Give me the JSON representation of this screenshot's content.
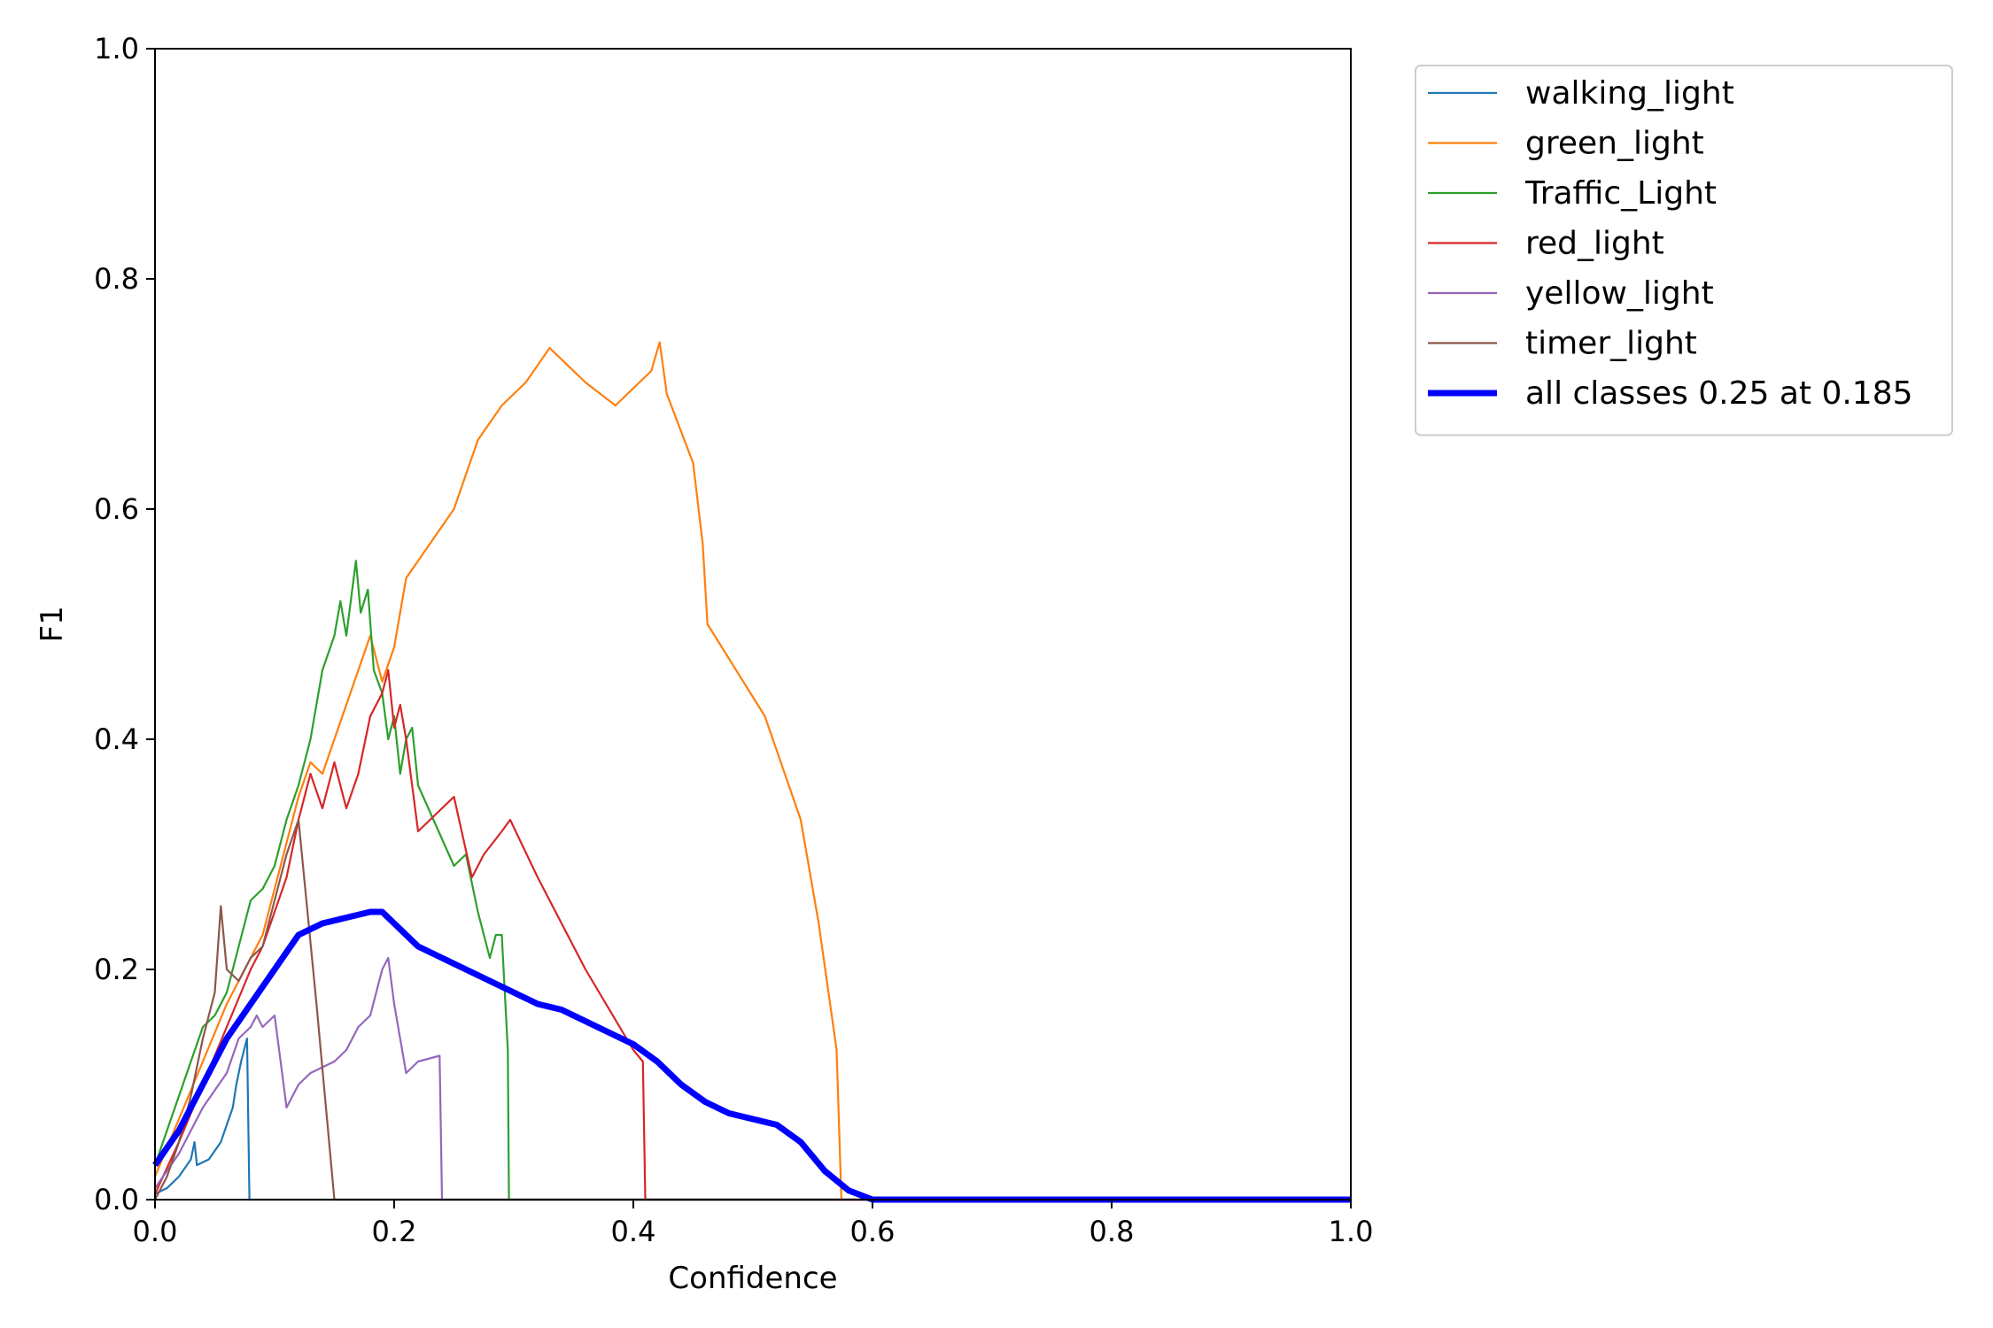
{
  "chart_data": {
    "type": "line",
    "title": "",
    "xlabel": "Confidence",
    "ylabel": "F1",
    "xlim": [
      0,
      1
    ],
    "ylim": [
      0,
      1
    ],
    "xticks": [
      0.0,
      0.2,
      0.4,
      0.6,
      0.8,
      1.0
    ],
    "yticks": [
      0.0,
      0.2,
      0.4,
      0.6,
      0.8,
      1.0
    ],
    "xtick_labels": [
      "0.0",
      "0.2",
      "0.4",
      "0.6",
      "0.8",
      "1.0"
    ],
    "ytick_labels": [
      "0.0",
      "0.2",
      "0.4",
      "0.6",
      "0.8",
      "1.0"
    ],
    "grid": false,
    "legend_position": "outside-top-right",
    "series": [
      {
        "name": "walking_light",
        "color": "#1f77b4",
        "line_width": "thin",
        "points": [
          [
            0,
            0.005
          ],
          [
            0.01,
            0.01
          ],
          [
            0.02,
            0.02
          ],
          [
            0.03,
            0.035
          ],
          [
            0.033,
            0.05
          ],
          [
            0.035,
            0.03
          ],
          [
            0.045,
            0.035
          ],
          [
            0.055,
            0.05
          ],
          [
            0.06,
            0.065
          ],
          [
            0.065,
            0.08
          ],
          [
            0.068,
            0.1
          ],
          [
            0.072,
            0.12
          ],
          [
            0.077,
            0.14
          ],
          [
            0.079,
            0.0
          ],
          [
            1.0,
            0.0
          ]
        ]
      },
      {
        "name": "green_light",
        "color": "#ff7f0e",
        "line_width": "thin",
        "points": [
          [
            0,
            0.02
          ],
          [
            0.02,
            0.07
          ],
          [
            0.04,
            0.12
          ],
          [
            0.06,
            0.17
          ],
          [
            0.08,
            0.21
          ],
          [
            0.09,
            0.23
          ],
          [
            0.1,
            0.27
          ],
          [
            0.11,
            0.31
          ],
          [
            0.12,
            0.35
          ],
          [
            0.13,
            0.38
          ],
          [
            0.14,
            0.37
          ],
          [
            0.15,
            0.4
          ],
          [
            0.16,
            0.43
          ],
          [
            0.17,
            0.46
          ],
          [
            0.18,
            0.49
          ],
          [
            0.19,
            0.45
          ],
          [
            0.2,
            0.48
          ],
          [
            0.21,
            0.54
          ],
          [
            0.23,
            0.57
          ],
          [
            0.25,
            0.6
          ],
          [
            0.26,
            0.63
          ],
          [
            0.27,
            0.66
          ],
          [
            0.29,
            0.69
          ],
          [
            0.31,
            0.71
          ],
          [
            0.33,
            0.74
          ],
          [
            0.36,
            0.71
          ],
          [
            0.385,
            0.69
          ],
          [
            0.415,
            0.72
          ],
          [
            0.422,
            0.745
          ],
          [
            0.428,
            0.7
          ],
          [
            0.45,
            0.64
          ],
          [
            0.458,
            0.57
          ],
          [
            0.462,
            0.5
          ],
          [
            0.51,
            0.42
          ],
          [
            0.54,
            0.33
          ],
          [
            0.555,
            0.24
          ],
          [
            0.57,
            0.13
          ],
          [
            0.574,
            0.0
          ],
          [
            1.0,
            0.0
          ]
        ]
      },
      {
        "name": "Traffic_Light",
        "color": "#2ca02c",
        "line_width": "thin",
        "points": [
          [
            0,
            0.03
          ],
          [
            0.02,
            0.09
          ],
          [
            0.03,
            0.12
          ],
          [
            0.04,
            0.15
          ],
          [
            0.05,
            0.16
          ],
          [
            0.06,
            0.18
          ],
          [
            0.07,
            0.22
          ],
          [
            0.08,
            0.26
          ],
          [
            0.09,
            0.27
          ],
          [
            0.1,
            0.29
          ],
          [
            0.11,
            0.33
          ],
          [
            0.12,
            0.36
          ],
          [
            0.13,
            0.4
          ],
          [
            0.14,
            0.46
          ],
          [
            0.15,
            0.49
          ],
          [
            0.155,
            0.52
          ],
          [
            0.16,
            0.49
          ],
          [
            0.168,
            0.555
          ],
          [
            0.172,
            0.51
          ],
          [
            0.178,
            0.53
          ],
          [
            0.183,
            0.46
          ],
          [
            0.19,
            0.44
          ],
          [
            0.195,
            0.4
          ],
          [
            0.2,
            0.42
          ],
          [
            0.205,
            0.37
          ],
          [
            0.21,
            0.4
          ],
          [
            0.215,
            0.41
          ],
          [
            0.22,
            0.36
          ],
          [
            0.25,
            0.29
          ],
          [
            0.26,
            0.3
          ],
          [
            0.27,
            0.25
          ],
          [
            0.28,
            0.21
          ],
          [
            0.285,
            0.23
          ],
          [
            0.29,
            0.23
          ],
          [
            0.295,
            0.13
          ],
          [
            0.296,
            0.0
          ],
          [
            1.0,
            0.0
          ]
        ]
      },
      {
        "name": "red_light",
        "color": "#d62728",
        "line_width": "thin",
        "points": [
          [
            0,
            0.005
          ],
          [
            0.02,
            0.05
          ],
          [
            0.04,
            0.1
          ],
          [
            0.06,
            0.15
          ],
          [
            0.08,
            0.2
          ],
          [
            0.09,
            0.22
          ],
          [
            0.1,
            0.25
          ],
          [
            0.11,
            0.28
          ],
          [
            0.12,
            0.33
          ],
          [
            0.13,
            0.37
          ],
          [
            0.14,
            0.34
          ],
          [
            0.15,
            0.38
          ],
          [
            0.16,
            0.34
          ],
          [
            0.17,
            0.37
          ],
          [
            0.18,
            0.42
          ],
          [
            0.19,
            0.44
          ],
          [
            0.195,
            0.46
          ],
          [
            0.2,
            0.41
          ],
          [
            0.205,
            0.43
          ],
          [
            0.21,
            0.4
          ],
          [
            0.22,
            0.32
          ],
          [
            0.25,
            0.35
          ],
          [
            0.265,
            0.28
          ],
          [
            0.275,
            0.3
          ],
          [
            0.29,
            0.32
          ],
          [
            0.297,
            0.33
          ],
          [
            0.32,
            0.28
          ],
          [
            0.36,
            0.2
          ],
          [
            0.4,
            0.13
          ],
          [
            0.408,
            0.12
          ],
          [
            0.41,
            0.0
          ],
          [
            1.0,
            0.0
          ]
        ]
      },
      {
        "name": "yellow_light",
        "color": "#9467bd",
        "line_width": "thin",
        "points": [
          [
            0,
            0.01
          ],
          [
            0.02,
            0.04
          ],
          [
            0.04,
            0.08
          ],
          [
            0.06,
            0.11
          ],
          [
            0.07,
            0.14
          ],
          [
            0.08,
            0.15
          ],
          [
            0.085,
            0.16
          ],
          [
            0.09,
            0.15
          ],
          [
            0.1,
            0.16
          ],
          [
            0.105,
            0.12
          ],
          [
            0.11,
            0.08
          ],
          [
            0.12,
            0.1
          ],
          [
            0.13,
            0.11
          ],
          [
            0.15,
            0.12
          ],
          [
            0.16,
            0.13
          ],
          [
            0.17,
            0.15
          ],
          [
            0.18,
            0.16
          ],
          [
            0.19,
            0.2
          ],
          [
            0.195,
            0.21
          ],
          [
            0.2,
            0.17
          ],
          [
            0.21,
            0.11
          ],
          [
            0.22,
            0.12
          ],
          [
            0.238,
            0.125
          ],
          [
            0.24,
            0.0
          ],
          [
            1.0,
            0.0
          ]
        ]
      },
      {
        "name": "timer_light",
        "color": "#8c564b",
        "line_width": "thin",
        "points": [
          [
            0,
            0.0
          ],
          [
            0.01,
            0.02
          ],
          [
            0.02,
            0.05
          ],
          [
            0.03,
            0.09
          ],
          [
            0.04,
            0.14
          ],
          [
            0.05,
            0.18
          ],
          [
            0.055,
            0.255
          ],
          [
            0.06,
            0.2
          ],
          [
            0.07,
            0.19
          ],
          [
            0.08,
            0.21
          ],
          [
            0.09,
            0.22
          ],
          [
            0.1,
            0.26
          ],
          [
            0.11,
            0.3
          ],
          [
            0.12,
            0.33
          ],
          [
            0.135,
            0.17
          ],
          [
            0.15,
            0.0
          ],
          [
            1.0,
            0.0
          ]
        ]
      },
      {
        "name": "all classes 0.25 at 0.185",
        "color": "#0000ff",
        "line_width": "thick",
        "points": [
          [
            0,
            0.03
          ],
          [
            0.02,
            0.06
          ],
          [
            0.04,
            0.1
          ],
          [
            0.06,
            0.14
          ],
          [
            0.08,
            0.17
          ],
          [
            0.1,
            0.2
          ],
          [
            0.12,
            0.23
          ],
          [
            0.14,
            0.24
          ],
          [
            0.16,
            0.245
          ],
          [
            0.18,
            0.25
          ],
          [
            0.19,
            0.25
          ],
          [
            0.2,
            0.24
          ],
          [
            0.22,
            0.22
          ],
          [
            0.24,
            0.21
          ],
          [
            0.26,
            0.2
          ],
          [
            0.28,
            0.19
          ],
          [
            0.3,
            0.18
          ],
          [
            0.32,
            0.17
          ],
          [
            0.34,
            0.165
          ],
          [
            0.36,
            0.155
          ],
          [
            0.38,
            0.145
          ],
          [
            0.4,
            0.135
          ],
          [
            0.42,
            0.12
          ],
          [
            0.44,
            0.1
          ],
          [
            0.46,
            0.085
          ],
          [
            0.48,
            0.075
          ],
          [
            0.5,
            0.07
          ],
          [
            0.52,
            0.065
          ],
          [
            0.54,
            0.05
          ],
          [
            0.56,
            0.025
          ],
          [
            0.58,
            0.008
          ],
          [
            0.6,
            0.0
          ],
          [
            1.0,
            0.0
          ]
        ]
      }
    ]
  }
}
